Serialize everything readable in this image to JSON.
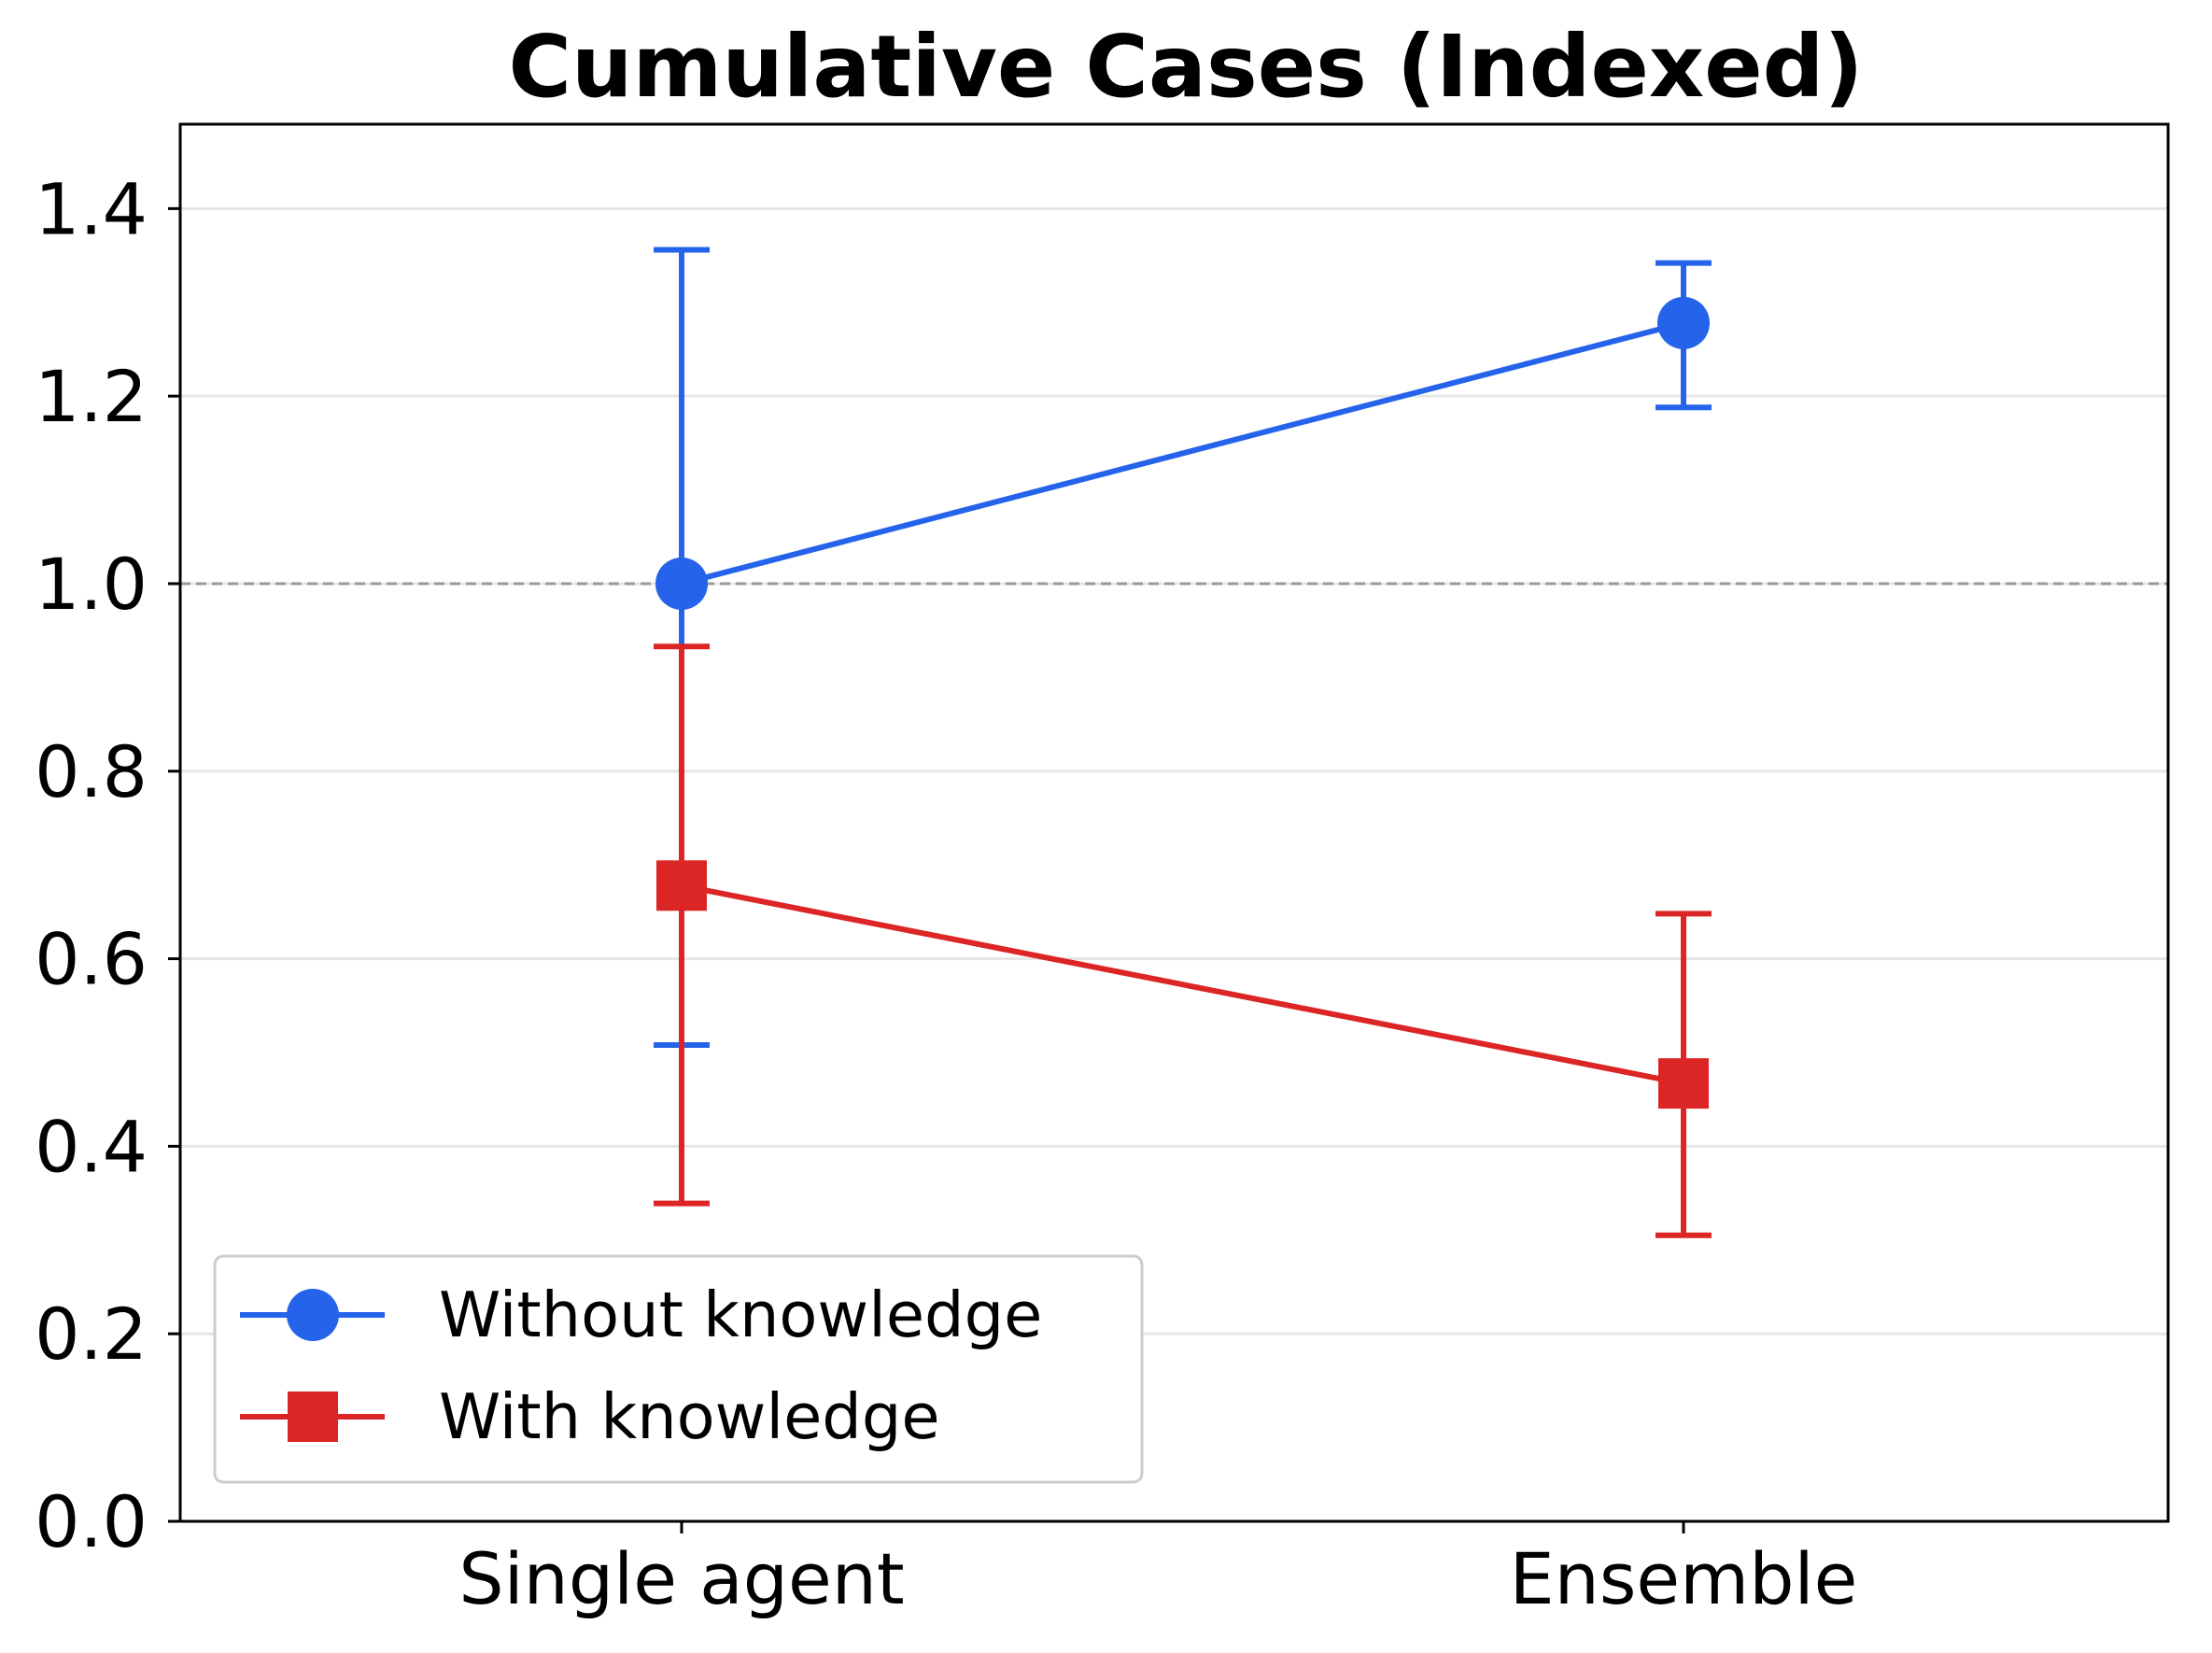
{
  "chart_data": {
    "type": "line",
    "title": "Cumulative Cases (Indexed)",
    "xlabel": "",
    "ylabel": "",
    "categories": [
      "Single agent",
      "Ensemble"
    ],
    "ylim": [
      0.0,
      1.49
    ],
    "yticks": [
      "0.0",
      "0.2",
      "0.4",
      "0.6",
      "0.8",
      "1.0",
      "1.2",
      "1.4"
    ],
    "reference_line": 1.0,
    "grid": "horizontal",
    "legend_position": "lower-left",
    "series": [
      {
        "name": "Without knowledge",
        "color": "#2563eb",
        "marker": "circle",
        "values": [
          1.0,
          1.278
        ],
        "error_low": [
          0.508,
          1.188
        ],
        "error_high": [
          1.356,
          1.342
        ]
      },
      {
        "name": "With knowledge",
        "color": "#dc2626",
        "marker": "square",
        "values": [
          0.678,
          0.467
        ],
        "error_low": [
          0.339,
          0.305
        ],
        "error_high": [
          0.933,
          0.648
        ]
      }
    ]
  }
}
